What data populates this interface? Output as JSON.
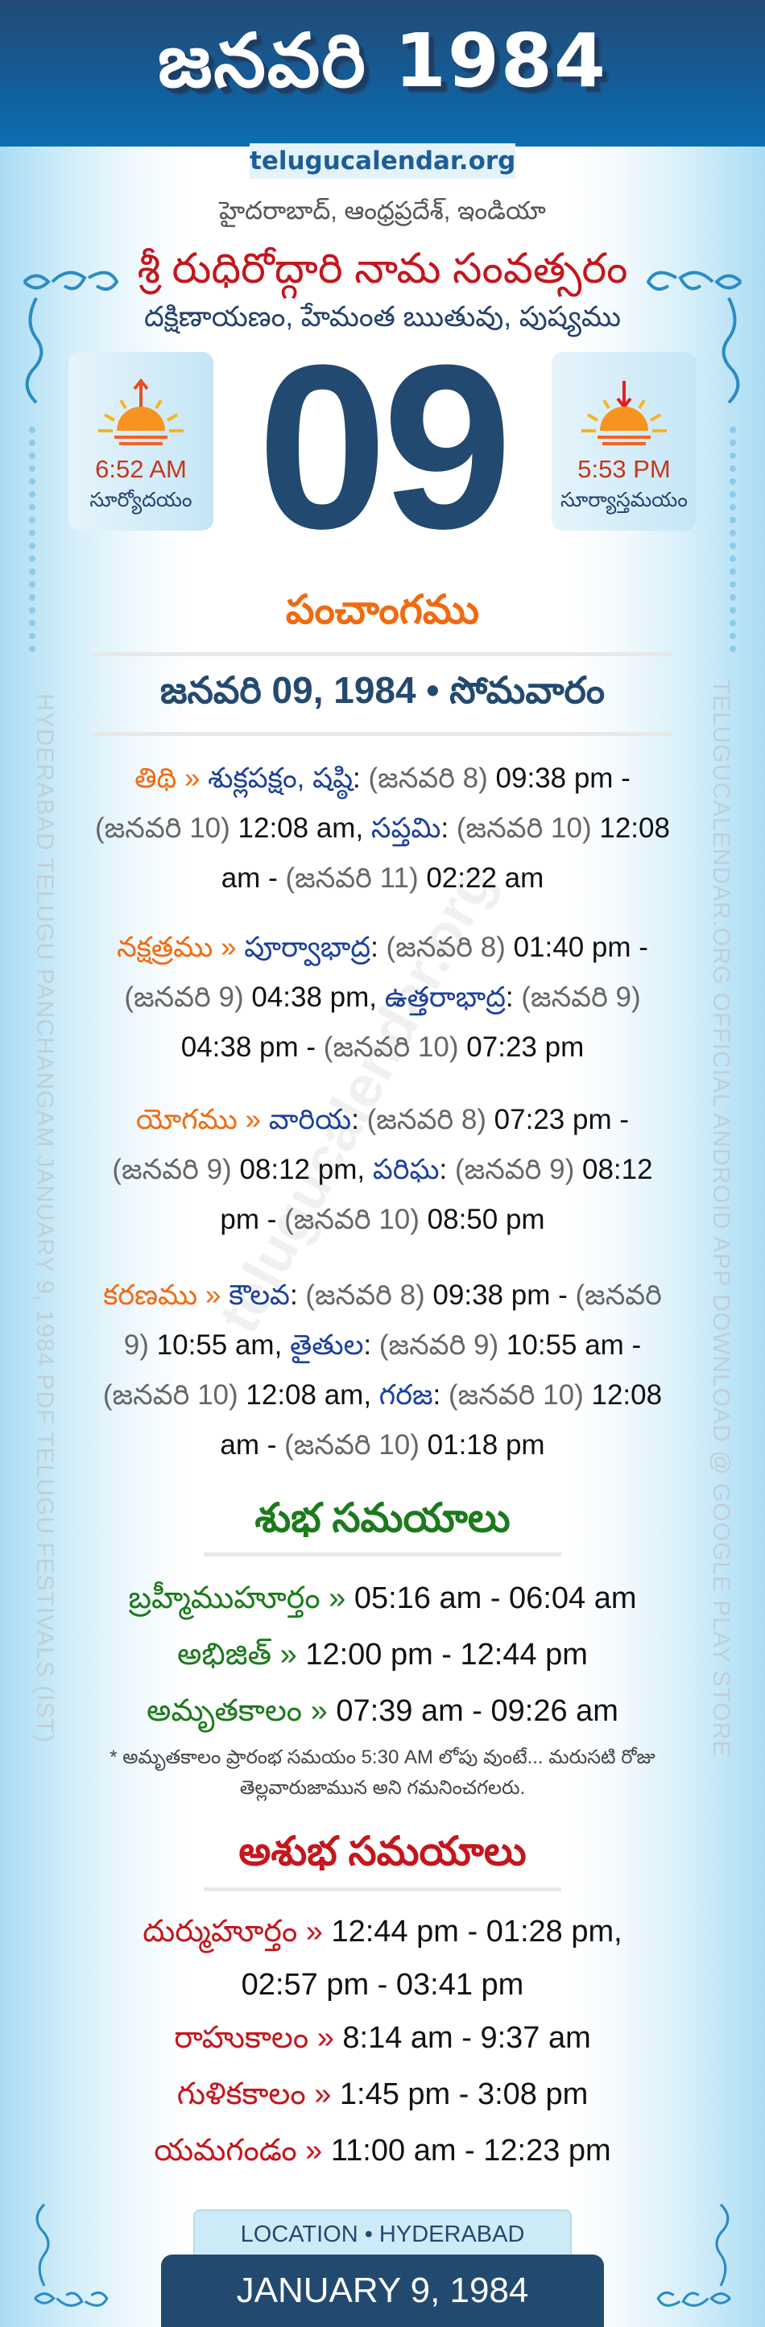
{
  "header": {
    "title": "జనవరి 1984",
    "site": "telugucalendar.org"
  },
  "location_line": "హైదరాబాద్, ఆంధ్రప్రదేశ్, ఇండియా",
  "samvatsaram": "శ్రీ రుధిరోద్గారి నామ సంవత్సరం",
  "ayana_line": "దక్షిణాయణం, హేమంత ఋతువు, పుష్యము",
  "day": "09",
  "sunrise": {
    "time": "6:52 AM",
    "label": "సూర్యోదయం",
    "icon": "sunrise-icon"
  },
  "sunset": {
    "time": "5:53 PM",
    "label": "సూర్యాస్తమయం",
    "icon": "sunset-icon"
  },
  "panchangam": {
    "heading": "పంచాంగము",
    "date_header": "జనవరి 09, 1984 • సోమవారం",
    "entries": [
      [
        {
          "t": "తిథి » ",
          "c": "label"
        },
        {
          "t": "శుక్లపక్షం, షష్ఠి",
          "c": "name"
        },
        {
          "t": ": ",
          "c": "time"
        },
        {
          "t": "(జనవరి 8) ",
          "c": "date"
        },
        {
          "t": "09:38 pm - ",
          "c": "time"
        },
        {
          "t": "(జనవరి 10) ",
          "c": "date"
        },
        {
          "t": "12:08 am, ",
          "c": "time"
        },
        {
          "t": "సప్తమి",
          "c": "name"
        },
        {
          "t": ": ",
          "c": "time"
        },
        {
          "t": "(జనవరి 10) ",
          "c": "date"
        },
        {
          "t": "12:08 am - ",
          "c": "time"
        },
        {
          "t": "(జనవరి 11) ",
          "c": "date"
        },
        {
          "t": "02:22 am",
          "c": "time"
        }
      ],
      [
        {
          "t": "నక్షత్రము » ",
          "c": "label"
        },
        {
          "t": "పూర్వాభాద్ర",
          "c": "name"
        },
        {
          "t": ": ",
          "c": "time"
        },
        {
          "t": "(జనవరి 8) ",
          "c": "date"
        },
        {
          "t": "01:40 pm - ",
          "c": "time"
        },
        {
          "t": "(జనవరి 9) ",
          "c": "date"
        },
        {
          "t": "04:38 pm, ",
          "c": "time"
        },
        {
          "t": "ఉత్తరాభాద్ర",
          "c": "name"
        },
        {
          "t": ": ",
          "c": "time"
        },
        {
          "t": "(జనవరి 9) ",
          "c": "date"
        },
        {
          "t": "04:38 pm - ",
          "c": "time"
        },
        {
          "t": "(జనవరి 10) ",
          "c": "date"
        },
        {
          "t": "07:23 pm",
          "c": "time"
        }
      ],
      [
        {
          "t": "యోగము » ",
          "c": "label"
        },
        {
          "t": "వారియ",
          "c": "name"
        },
        {
          "t": ": ",
          "c": "time"
        },
        {
          "t": "(జనవరి 8) ",
          "c": "date"
        },
        {
          "t": "07:23 pm - ",
          "c": "time"
        },
        {
          "t": "(జనవరి 9) ",
          "c": "date"
        },
        {
          "t": "08:12 pm, ",
          "c": "time"
        },
        {
          "t": "పరిఘ",
          "c": "name"
        },
        {
          "t": ": ",
          "c": "time"
        },
        {
          "t": "(జనవరి 9) ",
          "c": "date"
        },
        {
          "t": "08:12 pm - ",
          "c": "time"
        },
        {
          "t": "(జనవరి 10) ",
          "c": "date"
        },
        {
          "t": "08:50 pm",
          "c": "time"
        }
      ],
      [
        {
          "t": "కరణము » ",
          "c": "label"
        },
        {
          "t": "కౌలవ",
          "c": "name"
        },
        {
          "t": ": ",
          "c": "time"
        },
        {
          "t": "(జనవరి 8) ",
          "c": "date"
        },
        {
          "t": "09:38 pm - ",
          "c": "time"
        },
        {
          "t": "(జనవరి 9) ",
          "c": "date"
        },
        {
          "t": "10:55 am, ",
          "c": "time"
        },
        {
          "t": "తైతుల",
          "c": "name"
        },
        {
          "t": ": ",
          "c": "time"
        },
        {
          "t": "(జనవరి 9) ",
          "c": "date"
        },
        {
          "t": "10:55 am - ",
          "c": "time"
        },
        {
          "t": "(జనవరి 10) ",
          "c": "date"
        },
        {
          "t": "12:08 am, ",
          "c": "time"
        },
        {
          "t": "గరజ",
          "c": "name"
        },
        {
          "t": ": ",
          "c": "time"
        },
        {
          "t": "(జనవరి 10) ",
          "c": "date"
        },
        {
          "t": "12:08 am - ",
          "c": "time"
        },
        {
          "t": "(జనవరి 10) ",
          "c": "date"
        },
        {
          "t": "01:18 pm",
          "c": "time"
        }
      ]
    ]
  },
  "shubha": {
    "heading": "శుభ సమయాలు",
    "items": [
      {
        "label": "బ్రహ్మీముహూర్తం » ",
        "time": "05:16 am - 06:04 am"
      },
      {
        "label": "అభిజిత్ » ",
        "time": "12:00 pm - 12:44 pm"
      },
      {
        "label": "అమృతకాలం » ",
        "time": "07:39 am - 09:26 am"
      }
    ],
    "note": "* అమృతకాలం ప్రారంభ సమయం 5:30 AM లోపు వుంటే... మరుసటి రోజు తెల్లవారుజామున అని గమనించగలరు."
  },
  "ashubha": {
    "heading": "అశుభ సమయాలు",
    "items": [
      {
        "label": "దుర్ముహూర్తం » ",
        "time": "12:44 pm - 01:28 pm, 02:57 pm - 03:41 pm"
      },
      {
        "label": "రాహుకాలం » ",
        "time": "8:14 am - 9:37 am"
      },
      {
        "label": "గుళికకాలం » ",
        "time": "1:45 pm - 3:08 pm"
      },
      {
        "label": "యమగండం » ",
        "time": "11:00 am - 12:23 pm"
      }
    ]
  },
  "footer": {
    "location": "LOCATION • HYDERABAD",
    "date": "JANUARY 9, 1984"
  },
  "side_text": {
    "left": "HYDERABAD TELUGU PANCHANGAM JANUARY 9, 1984 PDF TELUGU FESTIVALS (IST)",
    "right": "TELUGUCALENDAR.ORG OFFICIAL ANDROID APP DOWNLOAD @ GOOGLE PLAY STORE"
  },
  "watermark": "telugucalendar.org",
  "colors": {
    "header": "#155a94",
    "navy": "#22496f",
    "orange": "#f26a0f",
    "green": "#1c7a1c",
    "red": "#c4161c",
    "name_blue": "#1a3f9e"
  }
}
